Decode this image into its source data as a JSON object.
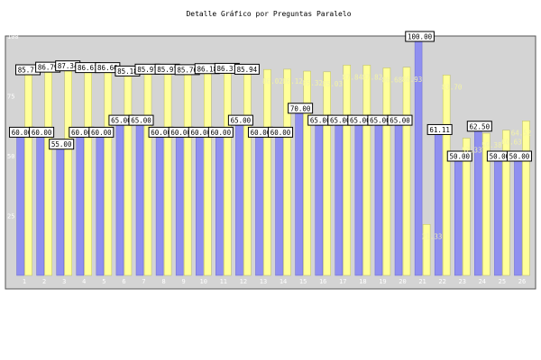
{
  "colors": {
    "plot_background": "#d4d4d4",
    "series_a": "#8f8ff0",
    "series_b": "#ffff99",
    "box_fill": "#ffffff",
    "box_border": "#000000"
  },
  "chart_data": {
    "type": "bar",
    "title": "Detalle Gráfico por Preguntas Paralelo",
    "xlabel": "",
    "ylabel": "",
    "ylim": [
      0,
      100
    ],
    "y_ticks": [
      25,
      50,
      75,
      100
    ],
    "grid": false,
    "legend": "none",
    "categories": [
      "1",
      "2",
      "3",
      "4",
      "5",
      "6",
      "7",
      "8",
      "9",
      "10",
      "11",
      "12",
      "13",
      "14",
      "15",
      "16",
      "17",
      "18",
      "19",
      "20",
      "21",
      "22",
      "23",
      "24",
      "25",
      "26"
    ],
    "series": [
      {
        "values": [
          60.0,
          60.0,
          55.0,
          60.0,
          60.0,
          65.0,
          65.0,
          60.0,
          60.0,
          60.0,
          60.0,
          65.0,
          60.0,
          60.0,
          70.0,
          65.0,
          65.0,
          65.0,
          65.0,
          65.0,
          100.0,
          61.11,
          50.0,
          62.5,
          50.0,
          50.0
        ],
        "labels": [
          "60.00",
          "60.00",
          "55.00",
          "60.00",
          "60.00",
          "65.00",
          "65.00",
          "60.00",
          "60.00",
          "60.00",
          "60.00",
          "65.00",
          "60.00",
          "60.00",
          "70.00",
          "65.00",
          "65.00",
          "65.00",
          "65.00",
          "65.00",
          "100.00",
          "61.11",
          "50.00",
          "62.50",
          "50.00",
          "50.00"
        ]
      },
      {
        "values": [
          85.71,
          86.79,
          87.34,
          86.61,
          86.6,
          85.18,
          85.97,
          85.97,
          85.76,
          86.18,
          86.31,
          85.94,
          86.02,
          86.12,
          85.32,
          85.03,
          87.84,
          87.82,
          86.68,
          86.93,
          21.33,
          83.7,
          57.33,
          59.38,
          60.63,
          64.52
        ],
        "labels": [
          "85.71",
          "86.79",
          "87.34",
          "86.61",
          "86.60",
          "85.18",
          "85.97",
          "85.97",
          "85.76",
          "86.18",
          "86.31",
          "85.94",
          "86.02",
          "86.12",
          "85.32",
          "85.03",
          "87.84",
          "87.82",
          "86.68",
          "86.93",
          "21.33",
          "83.70",
          "57.33",
          "59.38",
          "60.63",
          "64.52"
        ]
      }
    ]
  }
}
